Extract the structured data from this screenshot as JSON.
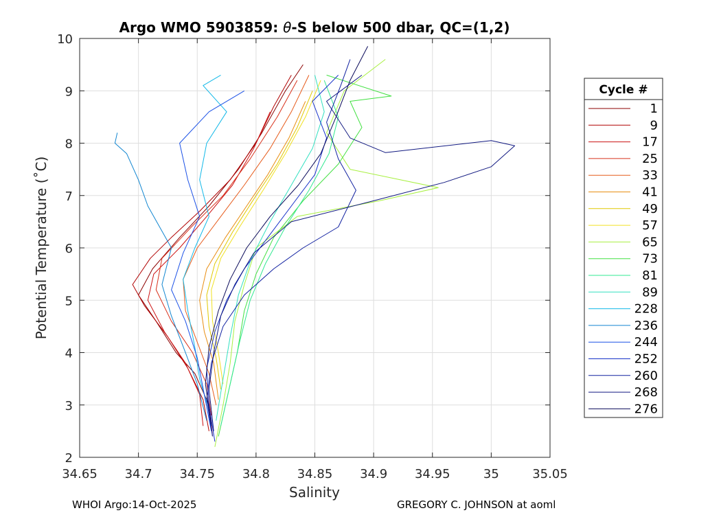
{
  "chart_data": {
    "type": "line",
    "title": "Argo WMO 5903859: θ-S below 500 dbar,  QC=(1,2)",
    "title_parts": {
      "prefix": "Argo WMO 5903859: ",
      "theta": "θ",
      "suffix": "-S below 500 dbar,  QC=(1,2)"
    },
    "xlabel": "Salinity",
    "ylabel": "Potential Temperature (˚C)",
    "xlim": [
      34.65,
      35.05
    ],
    "ylim": [
      2,
      10
    ],
    "xticks": [
      "34.65",
      "34.7",
      "34.75",
      "34.8",
      "34.85",
      "34.9",
      "34.95",
      "35",
      "35.05"
    ],
    "yticks": [
      "2",
      "3",
      "4",
      "5",
      "6",
      "7",
      "8",
      "9",
      "10"
    ],
    "grid": true,
    "legend_title": "Cycle #",
    "legend_position": "right-outside",
    "series": [
      {
        "name": "1",
        "color": "#8b0000",
        "values": [
          [
            34.763,
            2.4
          ],
          [
            34.76,
            3.0
          ],
          [
            34.748,
            3.6
          ],
          [
            34.732,
            4.0
          ],
          [
            34.715,
            4.6
          ],
          [
            34.7,
            5.1
          ],
          [
            34.712,
            5.6
          ],
          [
            34.735,
            6.2
          ],
          [
            34.76,
            6.8
          ],
          [
            34.785,
            7.5
          ],
          [
            34.805,
            8.2
          ],
          [
            34.825,
            9.0
          ],
          [
            34.84,
            9.5
          ]
        ]
      },
      {
        "name": "9",
        "color": "#b00000",
        "values": [
          [
            34.76,
            2.5
          ],
          [
            34.755,
            3.1
          ],
          [
            34.742,
            3.7
          ],
          [
            34.725,
            4.3
          ],
          [
            34.705,
            4.9
          ],
          [
            34.695,
            5.3
          ],
          [
            34.71,
            5.8
          ],
          [
            34.728,
            6.2
          ],
          [
            34.752,
            6.7
          ],
          [
            34.778,
            7.3
          ],
          [
            34.8,
            8.0
          ],
          [
            34.815,
            8.7
          ],
          [
            34.83,
            9.3
          ]
        ]
      },
      {
        "name": "17",
        "color": "#cc1010",
        "values": [
          [
            34.755,
            2.6
          ],
          [
            34.752,
            3.2
          ],
          [
            34.74,
            3.8
          ],
          [
            34.722,
            4.4
          ],
          [
            34.708,
            5.0
          ],
          [
            34.713,
            5.5
          ],
          [
            34.735,
            6.0
          ],
          [
            34.758,
            6.6
          ],
          [
            34.78,
            7.2
          ],
          [
            34.798,
            7.9
          ],
          [
            34.812,
            8.6
          ]
        ]
      },
      {
        "name": "25",
        "color": "#d8301a",
        "values": [
          [
            34.762,
            2.8
          ],
          [
            34.758,
            3.4
          ],
          [
            34.746,
            4.0
          ],
          [
            34.728,
            4.6
          ],
          [
            34.715,
            5.2
          ],
          [
            34.72,
            5.8
          ],
          [
            34.745,
            6.4
          ],
          [
            34.772,
            7.0
          ],
          [
            34.795,
            7.7
          ],
          [
            34.818,
            8.5
          ],
          [
            34.835,
            9.2
          ]
        ]
      },
      {
        "name": "33",
        "color": "#e65a1a",
        "values": [
          [
            34.766,
            3.0
          ],
          [
            34.76,
            3.6
          ],
          [
            34.75,
            4.2
          ],
          [
            34.74,
            4.8
          ],
          [
            34.738,
            5.4
          ],
          [
            34.75,
            6.0
          ],
          [
            34.77,
            6.6
          ],
          [
            34.79,
            7.2
          ],
          [
            34.812,
            7.9
          ],
          [
            34.83,
            8.6
          ],
          [
            34.845,
            9.3
          ]
        ]
      },
      {
        "name": "41",
        "color": "#e88d10",
        "values": [
          [
            34.768,
            3.1
          ],
          [
            34.764,
            3.8
          ],
          [
            34.756,
            4.4
          ],
          [
            34.752,
            5.0
          ],
          [
            34.758,
            5.6
          ],
          [
            34.774,
            6.2
          ],
          [
            34.792,
            6.8
          ],
          [
            34.81,
            7.4
          ],
          [
            34.828,
            8.1
          ],
          [
            34.842,
            8.8
          ]
        ]
      },
      {
        "name": "49",
        "color": "#e0c800",
        "values": [
          [
            34.77,
            3.3
          ],
          [
            34.766,
            3.9
          ],
          [
            34.76,
            4.5
          ],
          [
            34.758,
            5.1
          ],
          [
            34.765,
            5.7
          ],
          [
            34.78,
            6.3
          ],
          [
            34.8,
            7.0
          ],
          [
            34.818,
            7.6
          ],
          [
            34.835,
            8.3
          ],
          [
            34.848,
            9.0
          ]
        ]
      },
      {
        "name": "57",
        "color": "#f0e020",
        "values": [
          [
            34.772,
            3.4
          ],
          [
            34.768,
            4.0
          ],
          [
            34.763,
            4.6
          ],
          [
            34.762,
            5.2
          ],
          [
            34.77,
            5.8
          ],
          [
            34.786,
            6.4
          ],
          [
            34.806,
            7.1
          ],
          [
            34.825,
            7.8
          ],
          [
            34.842,
            8.5
          ],
          [
            34.855,
            9.2
          ]
        ]
      },
      {
        "name": "65",
        "color": "#a8f040",
        "values": [
          [
            34.765,
            2.2
          ],
          [
            34.772,
            3.0
          ],
          [
            34.778,
            3.8
          ],
          [
            34.782,
            4.6
          ],
          [
            34.79,
            5.3
          ],
          [
            34.8,
            6.0
          ],
          [
            34.835,
            6.6
          ],
          [
            34.905,
            6.9
          ],
          [
            34.955,
            7.15
          ],
          [
            34.88,
            7.5
          ],
          [
            34.86,
            8.2
          ],
          [
            34.875,
            9.0
          ],
          [
            34.91,
            9.6
          ]
        ]
      },
      {
        "name": "73",
        "color": "#40e040",
        "values": [
          [
            34.768,
            2.4
          ],
          [
            34.776,
            3.2
          ],
          [
            34.784,
            4.0
          ],
          [
            34.79,
            4.8
          ],
          [
            34.8,
            5.5
          ],
          [
            34.815,
            6.2
          ],
          [
            34.84,
            6.9
          ],
          [
            34.87,
            7.6
          ],
          [
            34.89,
            8.3
          ],
          [
            34.88,
            8.8
          ],
          [
            34.915,
            8.9
          ],
          [
            34.86,
            9.3
          ]
        ]
      },
      {
        "name": "81",
        "color": "#30e890",
        "values": [
          [
            34.77,
            2.6
          ],
          [
            34.778,
            3.4
          ],
          [
            34.786,
            4.2
          ],
          [
            34.795,
            5.0
          ],
          [
            34.808,
            5.7
          ],
          [
            34.825,
            6.4
          ],
          [
            34.845,
            7.1
          ],
          [
            34.862,
            7.8
          ],
          [
            34.87,
            8.5
          ],
          [
            34.858,
            9.2
          ]
        ]
      },
      {
        "name": "89",
        "color": "#30e0c0",
        "values": [
          [
            34.766,
            2.7
          ],
          [
            34.772,
            3.5
          ],
          [
            34.778,
            4.3
          ],
          [
            34.785,
            5.1
          ],
          [
            34.796,
            5.8
          ],
          [
            34.812,
            6.5
          ],
          [
            34.83,
            7.2
          ],
          [
            34.848,
            7.9
          ],
          [
            34.858,
            8.6
          ],
          [
            34.85,
            9.3
          ]
        ]
      },
      {
        "name": "228",
        "color": "#10b8e8",
        "values": [
          [
            34.76,
            2.9
          ],
          [
            34.752,
            3.5
          ],
          [
            34.748,
            4.1
          ],
          [
            34.742,
            4.8
          ],
          [
            34.738,
            5.4
          ],
          [
            34.748,
            6.0
          ],
          [
            34.76,
            6.6
          ],
          [
            34.752,
            7.3
          ],
          [
            34.758,
            8.0
          ],
          [
            34.775,
            8.6
          ],
          [
            34.755,
            9.1
          ],
          [
            34.77,
            9.3
          ]
        ]
      },
      {
        "name": "236",
        "color": "#1085d0",
        "values": [
          [
            34.758,
            2.7
          ],
          [
            34.75,
            3.4
          ],
          [
            34.74,
            4.0
          ],
          [
            34.728,
            4.7
          ],
          [
            34.72,
            5.3
          ],
          [
            34.728,
            6.0
          ],
          [
            34.708,
            6.8
          ],
          [
            34.7,
            7.3
          ],
          [
            34.69,
            7.8
          ],
          [
            34.68,
            8.0
          ],
          [
            34.682,
            8.2
          ]
        ]
      },
      {
        "name": "244",
        "color": "#1a50e6",
        "values": [
          [
            34.762,
            2.5
          ],
          [
            34.756,
            3.2
          ],
          [
            34.75,
            3.9
          ],
          [
            34.74,
            4.6
          ],
          [
            34.728,
            5.2
          ],
          [
            34.738,
            5.9
          ],
          [
            34.752,
            6.6
          ],
          [
            34.742,
            7.3
          ],
          [
            34.735,
            8.0
          ],
          [
            34.76,
            8.6
          ],
          [
            34.79,
            9.0
          ]
        ]
      },
      {
        "name": "252",
        "color": "#1530c8",
        "values": [
          [
            34.765,
            2.3
          ],
          [
            34.76,
            3.0
          ],
          [
            34.758,
            3.7
          ],
          [
            34.765,
            4.4
          ],
          [
            34.775,
            5.0
          ],
          [
            34.79,
            5.6
          ],
          [
            34.81,
            6.2
          ],
          [
            34.83,
            6.8
          ],
          [
            34.85,
            7.4
          ],
          [
            34.86,
            8.1
          ],
          [
            34.848,
            8.8
          ],
          [
            34.87,
            9.3
          ]
        ]
      },
      {
        "name": "260",
        "color": "#1020a0",
        "values": [
          [
            34.763,
            2.4
          ],
          [
            34.758,
            3.1
          ],
          [
            34.762,
            3.8
          ],
          [
            34.772,
            4.5
          ],
          [
            34.79,
            5.1
          ],
          [
            34.815,
            5.6
          ],
          [
            34.84,
            6.0
          ],
          [
            34.87,
            6.4
          ],
          [
            34.885,
            7.1
          ],
          [
            34.87,
            7.7
          ],
          [
            34.86,
            8.4
          ],
          [
            34.872,
            9.1
          ],
          [
            34.88,
            9.6
          ]
        ]
      },
      {
        "name": "268",
        "color": "#101880",
        "values": [
          [
            34.764,
            2.5
          ],
          [
            34.76,
            3.3
          ],
          [
            34.764,
            4.0
          ],
          [
            34.77,
            4.7
          ],
          [
            34.782,
            5.3
          ],
          [
            34.798,
            5.9
          ],
          [
            34.83,
            6.5
          ],
          [
            34.9,
            6.9
          ],
          [
            34.96,
            7.25
          ],
          [
            35.0,
            7.55
          ],
          [
            35.02,
            7.95
          ],
          [
            35.0,
            8.05
          ],
          [
            34.91,
            7.82
          ],
          [
            34.88,
            8.1
          ],
          [
            34.86,
            8.8
          ],
          [
            34.89,
            9.3
          ]
        ]
      },
      {
        "name": "276",
        "color": "#0a0a5a",
        "values": [
          [
            34.762,
            2.6
          ],
          [
            34.757,
            3.4
          ],
          [
            34.76,
            4.1
          ],
          [
            34.768,
            4.8
          ],
          [
            34.778,
            5.4
          ],
          [
            34.792,
            6.0
          ],
          [
            34.812,
            6.6
          ],
          [
            34.836,
            7.2
          ],
          [
            34.855,
            7.8
          ],
          [
            34.868,
            8.5
          ],
          [
            34.88,
            9.2
          ],
          [
            34.895,
            9.85
          ]
        ]
      }
    ]
  },
  "footer": {
    "left": "WHOI Argo:14-Oct-2025",
    "right": "GREGORY C. JOHNSON at aoml"
  }
}
